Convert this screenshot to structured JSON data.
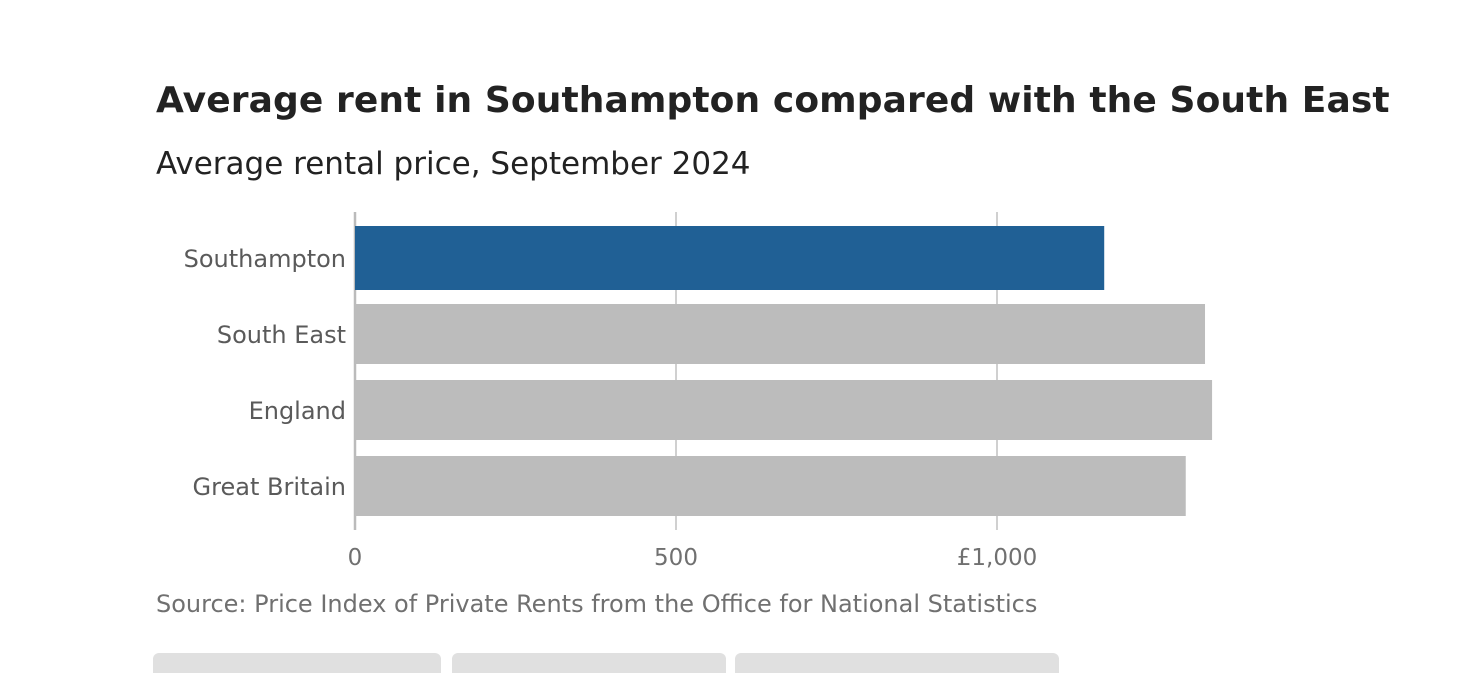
{
  "title": "Average rent in Southampton compared with the South East",
  "subtitle": "Average rental price, September 2024",
  "source": "Source: Price Index of Private Rents from the Office for National Statistics",
  "chart_data": {
    "type": "bar",
    "orientation": "horizontal",
    "categories": [
      "Southampton",
      "South East",
      "England",
      "Great Britain"
    ],
    "values": [
      1167,
      1324,
      1335,
      1294
    ],
    "colors": [
      "#206095",
      "#bcbcbc",
      "#bcbcbc",
      "#bcbcbc"
    ],
    "xlim": [
      0,
      1500
    ],
    "xticks": [
      0,
      500,
      1000
    ],
    "xtick_labels": [
      "0",
      "500",
      "£1,000"
    ],
    "grid": true,
    "xlabel": "",
    "ylabel": ""
  }
}
